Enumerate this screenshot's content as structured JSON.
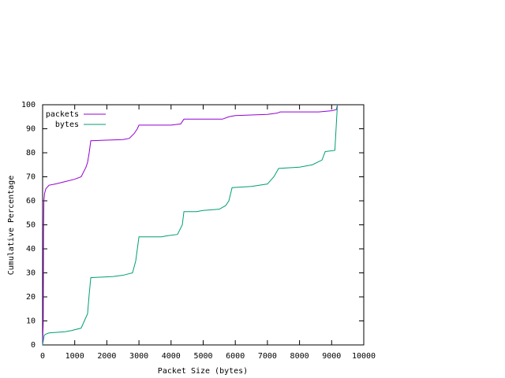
{
  "chart_data": {
    "type": "line",
    "xlabel": "Packet Size (bytes)",
    "ylabel": "Cumulative Percentage",
    "xlim": [
      0,
      10000
    ],
    "ylim": [
      0,
      100
    ],
    "xticks": [
      0,
      1000,
      2000,
      3000,
      4000,
      5000,
      6000,
      7000,
      8000,
      9000,
      10000
    ],
    "yticks": [
      0,
      10,
      20,
      30,
      40,
      50,
      60,
      70,
      80,
      90,
      100
    ],
    "grid": false,
    "legend": "top-left",
    "series": [
      {
        "name": "packets",
        "color": "#9400d3",
        "x": [
          0,
          20,
          30,
          40,
          60,
          100,
          200,
          400,
          700,
          1000,
          1200,
          1350,
          1400,
          1450,
          1500,
          2500,
          2700,
          2850,
          2950,
          3000,
          4000,
          4300,
          4400,
          5600,
          5800,
          6000,
          7000,
          7300,
          7400,
          8600,
          9000,
          9150,
          9180
        ],
        "values": [
          0,
          10,
          48,
          60,
          63,
          65,
          66.5,
          67,
          68,
          69,
          70,
          74,
          76,
          80,
          85,
          85.5,
          86,
          88,
          90,
          91.5,
          91.5,
          92,
          94,
          94,
          95,
          95.5,
          96,
          96.5,
          97,
          97,
          97.5,
          98,
          100
        ]
      },
      {
        "name": "bytes",
        "color": "#009e73",
        "x": [
          0,
          50,
          100,
          200,
          700,
          900,
          1200,
          1300,
          1400,
          1450,
          1500,
          2200,
          2500,
          2800,
          2900,
          3000,
          3700,
          3900,
          4200,
          4350,
          4400,
          4800,
          5000,
          5500,
          5700,
          5800,
          5900,
          6500,
          7000,
          7200,
          7350,
          8000,
          8400,
          8700,
          8800,
          9100,
          9180
        ],
        "values": [
          0,
          4,
          4.5,
          5,
          5.5,
          6,
          7,
          10,
          13,
          21,
          28,
          28.5,
          29,
          30,
          35,
          45,
          45,
          45.5,
          46,
          50,
          55.5,
          55.5,
          56,
          56.5,
          58,
          60,
          65.5,
          66,
          67,
          70,
          73.5,
          74,
          75,
          77,
          80.5,
          81,
          100
        ]
      }
    ]
  }
}
